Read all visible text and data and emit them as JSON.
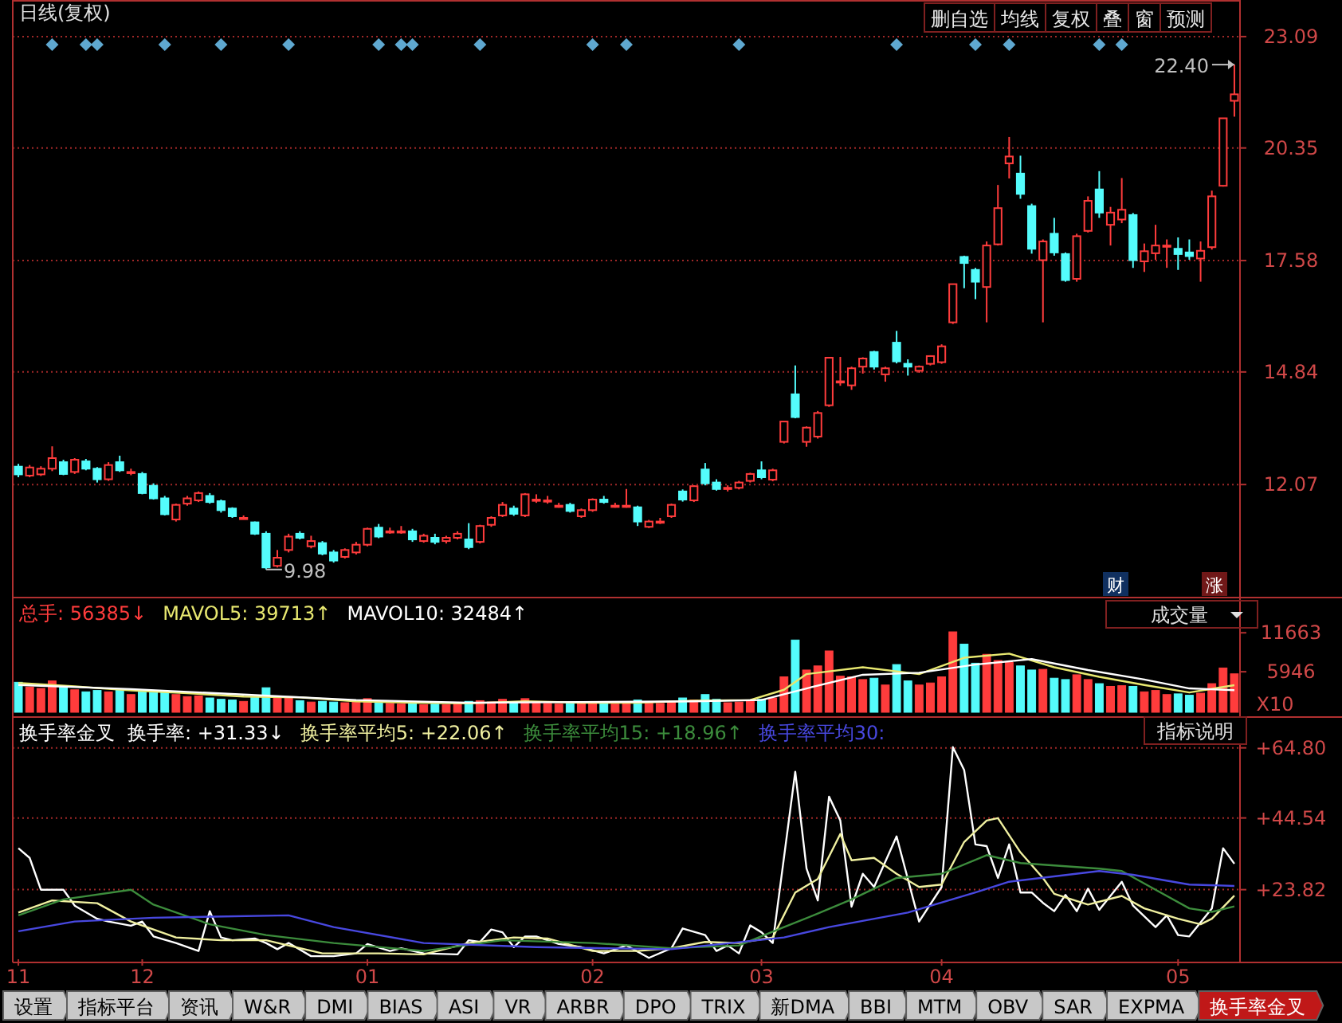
{
  "chart_data": [
    {
      "type": "candlestick",
      "title": "日线(复权)",
      "tick_labels": "y",
      "grid": "y",
      "ylim": [
        9.29,
        23.99
      ],
      "yticks": [
        12.07,
        14.84,
        17.58,
        20.35,
        23.09
      ],
      "categories": [
        null,
        null,
        null,
        null,
        null,
        null,
        null,
        null,
        null,
        null,
        null,
        null,
        null,
        null,
        null,
        null,
        null,
        null,
        null,
        null,
        null,
        null,
        null,
        null,
        null,
        null,
        null,
        null,
        null,
        null,
        null,
        null,
        null,
        null,
        null,
        null,
        null,
        null,
        null,
        null,
        null,
        null,
        null,
        null,
        null,
        null,
        null,
        null,
        null,
        null,
        null,
        null,
        null,
        null,
        null,
        null,
        null,
        null,
        null,
        null,
        null,
        null,
        null,
        null,
        null,
        null,
        null,
        null,
        null,
        null,
        null,
        null,
        null,
        null,
        null,
        null,
        null,
        null,
        null,
        null,
        null,
        null,
        null,
        null,
        null,
        null,
        null,
        null,
        null,
        null,
        null,
        null,
        null,
        null,
        null,
        null,
        null,
        null,
        null,
        null,
        null,
        null,
        null,
        null,
        null,
        null,
        null,
        null,
        null
      ],
      "ohlc": [
        [
          12.51,
          12.58,
          12.25,
          12.32
        ],
        [
          12.29,
          12.55,
          12.25,
          12.49
        ],
        [
          12.32,
          12.52,
          12.28,
          12.46
        ],
        [
          12.46,
          13.01,
          12.4,
          12.72
        ],
        [
          12.62,
          12.68,
          12.3,
          12.33
        ],
        [
          12.38,
          12.72,
          12.33,
          12.68
        ],
        [
          12.64,
          12.7,
          12.42,
          12.46
        ],
        [
          12.46,
          12.5,
          12.12,
          12.2
        ],
        [
          12.2,
          12.62,
          12.16,
          12.55
        ],
        [
          12.62,
          12.78,
          12.38,
          12.42
        ],
        [
          12.38,
          12.46,
          12.3,
          12.38
        ],
        [
          12.33,
          12.38,
          11.83,
          11.86
        ],
        [
          12.04,
          12.1,
          11.7,
          11.73
        ],
        [
          11.73,
          11.79,
          11.31,
          11.34
        ],
        [
          11.21,
          11.6,
          11.16,
          11.57
        ],
        [
          11.6,
          11.79,
          11.55,
          11.73
        ],
        [
          11.68,
          11.9,
          11.64,
          11.86
        ],
        [
          11.79,
          11.86,
          11.6,
          11.64
        ],
        [
          11.66,
          11.7,
          11.38,
          11.44
        ],
        [
          11.48,
          11.51,
          11.25,
          11.29
        ],
        [
          11.25,
          11.31,
          11.21,
          11.25
        ],
        [
          11.14,
          11.16,
          10.83,
          10.86
        ],
        [
          10.86,
          10.92,
          9.98,
          10.03
        ],
        [
          10.07,
          10.46,
          10.03,
          10.27
        ],
        [
          10.46,
          10.86,
          10.4,
          10.79
        ],
        [
          10.86,
          10.92,
          10.72,
          10.76
        ],
        [
          10.55,
          10.81,
          10.5,
          10.68
        ],
        [
          10.63,
          10.68,
          10.33,
          10.37
        ],
        [
          10.4,
          10.46,
          10.15,
          10.2
        ],
        [
          10.29,
          10.5,
          10.25,
          10.46
        ],
        [
          10.4,
          10.66,
          10.35,
          10.59
        ],
        [
          10.59,
          11.01,
          10.55,
          10.98
        ],
        [
          11.01,
          11.1,
          10.75,
          10.79
        ],
        [
          10.92,
          11.01,
          10.86,
          10.92
        ],
        [
          10.92,
          11.05,
          10.86,
          10.92
        ],
        [
          10.92,
          10.98,
          10.66,
          10.72
        ],
        [
          10.68,
          10.86,
          10.64,
          10.81
        ],
        [
          10.76,
          10.86,
          10.6,
          10.66
        ],
        [
          10.68,
          10.81,
          10.62,
          10.76
        ],
        [
          10.76,
          10.92,
          10.72,
          10.86
        ],
        [
          10.72,
          11.12,
          10.48,
          10.53
        ],
        [
          10.66,
          11.08,
          10.62,
          11.05
        ],
        [
          11.08,
          11.29,
          11.03,
          11.25
        ],
        [
          11.31,
          11.64,
          11.27,
          11.57
        ],
        [
          11.48,
          11.55,
          11.3,
          11.35
        ],
        [
          11.31,
          11.86,
          11.27,
          11.83
        ],
        [
          11.7,
          11.83,
          11.62,
          11.7
        ],
        [
          11.68,
          11.79,
          11.6,
          11.68
        ],
        [
          11.55,
          11.62,
          11.5,
          11.55
        ],
        [
          11.57,
          11.62,
          11.38,
          11.42
        ],
        [
          11.29,
          11.48,
          11.25,
          11.44
        ],
        [
          11.44,
          11.73,
          11.4,
          11.7
        ],
        [
          11.7,
          11.79,
          11.6,
          11.64
        ],
        [
          11.55,
          11.62,
          11.5,
          11.55
        ],
        [
          11.55,
          11.96,
          11.5,
          11.55
        ],
        [
          11.51,
          11.55,
          11.05,
          11.16
        ],
        [
          11.03,
          11.2,
          11.0,
          11.16
        ],
        [
          11.16,
          11.25,
          11.1,
          11.16
        ],
        [
          11.29,
          11.6,
          11.25,
          11.57
        ],
        [
          11.9,
          11.95,
          11.65,
          11.7
        ],
        [
          11.68,
          12.05,
          11.64,
          12.03
        ],
        [
          12.44,
          12.6,
          12.05,
          12.1
        ],
        [
          12.12,
          12.2,
          11.92,
          11.96
        ],
        [
          11.99,
          12.05,
          11.9,
          11.99
        ],
        [
          11.99,
          12.16,
          11.95,
          12.12
        ],
        [
          12.16,
          12.36,
          12.12,
          12.33
        ],
        [
          12.42,
          12.64,
          12.2,
          12.25
        ],
        [
          12.19,
          12.46,
          12.15,
          12.42
        ],
        [
          13.12,
          13.62,
          13.08,
          13.62
        ],
        [
          14.29,
          15.0,
          13.7,
          13.73
        ],
        [
          13.12,
          13.5,
          13.0,
          13.47
        ],
        [
          13.25,
          13.88,
          13.2,
          13.83
        ],
        [
          14.02,
          15.19,
          13.98,
          15.19
        ],
        [
          14.61,
          15.21,
          14.5,
          14.61
        ],
        [
          14.51,
          14.97,
          14.4,
          14.93
        ],
        [
          14.97,
          15.2,
          14.8,
          15.17
        ],
        [
          15.33,
          15.36,
          14.9,
          14.97
        ],
        [
          14.78,
          14.97,
          14.6,
          14.93
        ],
        [
          15.56,
          15.85,
          15.05,
          15.1
        ],
        [
          15.04,
          15.15,
          14.75,
          14.97
        ],
        [
          14.87,
          15.0,
          14.82,
          14.97
        ],
        [
          15.04,
          15.25,
          15.0,
          15.23
        ],
        [
          15.08,
          15.52,
          15.04,
          15.47
        ],
        [
          16.06,
          17.0,
          16.02,
          17.0
        ],
        [
          17.67,
          17.7,
          16.9,
          17.52
        ],
        [
          17.35,
          17.4,
          16.63,
          17.06
        ],
        [
          16.93,
          18.05,
          16.06,
          17.95
        ],
        [
          17.98,
          19.44,
          17.95,
          18.87
        ],
        [
          19.97,
          20.62,
          19.6,
          20.14
        ],
        [
          19.72,
          20.16,
          19.1,
          19.22
        ],
        [
          18.92,
          18.98,
          17.75,
          17.87
        ],
        [
          17.59,
          18.1,
          16.06,
          18.05
        ],
        [
          18.24,
          18.63,
          17.7,
          17.78
        ],
        [
          17.74,
          17.78,
          17.06,
          17.1
        ],
        [
          17.13,
          18.24,
          17.06,
          18.18
        ],
        [
          18.31,
          19.16,
          18.27,
          19.05
        ],
        [
          19.33,
          19.78,
          18.63,
          18.76
        ],
        [
          18.46,
          18.9,
          17.95,
          18.76
        ],
        [
          18.59,
          19.61,
          18.5,
          18.83
        ],
        [
          18.7,
          18.75,
          17.4,
          17.59
        ],
        [
          17.56,
          18.0,
          17.3,
          17.81
        ],
        [
          17.76,
          18.46,
          17.6,
          17.95
        ],
        [
          17.95,
          18.1,
          17.4,
          17.95
        ],
        [
          17.87,
          18.15,
          17.35,
          17.74
        ],
        [
          17.78,
          18.1,
          17.6,
          17.69
        ],
        [
          17.63,
          18.05,
          17.06,
          17.82
        ],
        [
          17.91,
          19.3,
          17.85,
          19.16
        ],
        [
          19.42,
          21.08,
          19.4,
          21.08
        ],
        [
          21.51,
          22.4,
          21.12,
          21.67
        ]
      ],
      "series": [
        {
          "type": "scatter",
          "marker": "diamond",
          "color": "#5fa8d0",
          "values": [
            null,
            null,
            null,
            22.89,
            null,
            null,
            22.89,
            22.89,
            null,
            null,
            null,
            null,
            null,
            22.89,
            null,
            null,
            null,
            null,
            22.89,
            null,
            null,
            null,
            null,
            null,
            22.89,
            null,
            null,
            null,
            null,
            null,
            null,
            null,
            22.89,
            null,
            22.89,
            22.89,
            null,
            null,
            null,
            null,
            null,
            22.89,
            null,
            null,
            null,
            null,
            null,
            null,
            null,
            null,
            null,
            22.89,
            null,
            null,
            22.89,
            null,
            null,
            null,
            null,
            null,
            null,
            null,
            null,
            null,
            22.89,
            null,
            null,
            null,
            null,
            null,
            null,
            null,
            null,
            null,
            null,
            null,
            null,
            null,
            22.89,
            null,
            null,
            null,
            null,
            null,
            null,
            22.89,
            null,
            null,
            22.89,
            null,
            null,
            null,
            null,
            null,
            null,
            null,
            22.89,
            null,
            22.89,
            null,
            null,
            null,
            null,
            null,
            null,
            null,
            null,
            null,
            null
          ]
        }
      ],
      "annotations": [
        "9.98",
        "22.40",
        "删自选",
        "均线",
        "复权",
        "叠",
        "窗",
        "预测",
        "财",
        "涨"
      ]
    },
    {
      "type": "bar",
      "tick_labels": "y",
      "legend": "top left",
      "ylim": [
        0,
        16830
      ],
      "yticks": [
        5946,
        11663
      ],
      "categories": [
        null,
        null,
        null,
        null,
        null,
        null,
        null,
        null,
        null,
        null,
        null,
        null,
        null,
        null,
        null,
        null,
        null,
        null,
        null,
        null,
        null,
        null,
        null,
        null,
        null,
        null,
        null,
        null,
        null,
        null,
        null,
        null,
        null,
        null,
        null,
        null,
        null,
        null,
        null,
        null,
        null,
        null,
        null,
        null,
        null,
        null,
        null,
        null,
        null,
        null,
        null,
        null,
        null,
        null,
        null,
        null,
        null,
        null,
        null,
        null,
        null,
        null,
        null,
        null,
        null,
        null,
        null,
        null,
        null,
        null,
        null,
        null,
        null,
        null,
        null,
        null,
        null,
        null,
        null,
        null,
        null,
        null,
        null,
        null,
        null,
        null,
        null,
        null,
        null,
        null,
        null,
        null,
        null,
        null,
        null,
        null,
        null,
        null,
        null,
        null,
        null,
        null,
        null,
        null,
        null,
        null,
        null,
        null,
        null
      ],
      "series": [
        {
          "name": "总手: 56385↓",
          "color": "#ff3c3c",
          "values": [
            4400,
            3700,
            3500,
            4600,
            3800,
            3300,
            3000,
            3200,
            3000,
            3400,
            2600,
            3300,
            2900,
            3100,
            2600,
            2300,
            2400,
            2100,
            1900,
            1800,
            1600,
            2200,
            3600,
            2400,
            2100,
            1700,
            1500,
            1600,
            1500,
            1400,
            1500,
            2000,
            1600,
            1300,
            1200,
            1300,
            1100,
            1200,
            1100,
            1200,
            1600,
            1700,
            1500,
            1900,
            1500,
            2000,
            1400,
            1300,
            1200,
            1300,
            1400,
            1500,
            1300,
            1200,
            1400,
            1800,
            1500,
            1300,
            1600,
            2100,
            1800,
            2600,
            1900,
            1400,
            1500,
            1700,
            1900,
            2100,
            5200,
            10600,
            6200,
            6800,
            9000,
            5300,
            5200,
            4800,
            5000,
            4000,
            7000,
            4600,
            4000,
            4300,
            5200,
            11800,
            10000,
            7200,
            8500,
            7600,
            7300,
            6800,
            6200,
            6300,
            5000,
            4800,
            5500,
            4800,
            4200,
            3800,
            3900,
            3800,
            3000,
            3200,
            2600,
            2700,
            2500,
            2800,
            4200,
            6500,
            5640
          ],
          "colors": [
            "#54fcfc",
            "#ff3c3c",
            "#ff3c3c",
            "#ff3c3c",
            "#54fcfc",
            "#ff3c3c",
            "#54fcfc",
            "#54fcfc",
            "#ff3c3c",
            "#54fcfc",
            "#ff3c3c",
            "#54fcfc",
            "#54fcfc",
            "#54fcfc",
            "#ff3c3c",
            "#ff3c3c",
            "#ff3c3c",
            "#54fcfc",
            "#54fcfc",
            "#54fcfc",
            "#ff3c3c",
            "#54fcfc",
            "#54fcfc",
            "#ff3c3c",
            "#ff3c3c",
            "#54fcfc",
            "#ff3c3c",
            "#54fcfc",
            "#54fcfc",
            "#ff3c3c",
            "#ff3c3c",
            "#ff3c3c",
            "#54fcfc",
            "#ff3c3c",
            "#ff3c3c",
            "#54fcfc",
            "#ff3c3c",
            "#54fcfc",
            "#ff3c3c",
            "#ff3c3c",
            "#54fcfc",
            "#ff3c3c",
            "#ff3c3c",
            "#ff3c3c",
            "#54fcfc",
            "#ff3c3c",
            "#ff3c3c",
            "#ff3c3c",
            "#ff3c3c",
            "#54fcfc",
            "#ff3c3c",
            "#ff3c3c",
            "#54fcfc",
            "#ff3c3c",
            "#ff3c3c",
            "#54fcfc",
            "#ff3c3c",
            "#ff3c3c",
            "#ff3c3c",
            "#54fcfc",
            "#ff3c3c",
            "#54fcfc",
            "#54fcfc",
            "#ff3c3c",
            "#ff3c3c",
            "#ff3c3c",
            "#54fcfc",
            "#ff3c3c",
            "#ff3c3c",
            "#54fcfc",
            "#ff3c3c",
            "#ff3c3c",
            "#ff3c3c",
            "#ff3c3c",
            "#ff3c3c",
            "#ff3c3c",
            "#54fcfc",
            "#ff3c3c",
            "#54fcfc",
            "#54fcfc",
            "#ff3c3c",
            "#ff3c3c",
            "#ff3c3c",
            "#ff3c3c",
            "#54fcfc",
            "#54fcfc",
            "#ff3c3c",
            "#ff3c3c",
            "#ff3c3c",
            "#54fcfc",
            "#54fcfc",
            "#ff3c3c",
            "#54fcfc",
            "#54fcfc",
            "#ff3c3c",
            "#ff3c3c",
            "#54fcfc",
            "#ff3c3c",
            "#ff3c3c",
            "#54fcfc",
            "#ff3c3c",
            "#ff3c3c",
            "#ff3c3c",
            "#54fcfc",
            "#54fcfc",
            "#ff3c3c",
            "#ff3c3c",
            "#ff3c3c",
            "#ff3c3c"
          ]
        },
        {
          "type": "line",
          "name": "MAVOL5: 39713↑",
          "color": "#e8e870",
          "values": [
            4300,
            null,
            null,
            null,
            null,
            3800,
            null,
            null,
            null,
            null,
            3200,
            null,
            null,
            null,
            null,
            2800,
            null,
            null,
            null,
            null,
            2300,
            null,
            null,
            null,
            null,
            2200,
            null,
            null,
            null,
            null,
            1600,
            null,
            null,
            null,
            null,
            1400,
            null,
            null,
            null,
            null,
            1300,
            null,
            null,
            null,
            null,
            1600,
            null,
            null,
            null,
            null,
            1400,
            null,
            null,
            null,
            null,
            1400,
            null,
            null,
            null,
            null,
            1700,
            null,
            null,
            null,
            null,
            1800,
            null,
            null,
            3300,
            null,
            5600,
            null,
            null,
            null,
            null,
            6600,
            null,
            null,
            null,
            null,
            5600,
            null,
            null,
            null,
            8000,
            null,
            null,
            null,
            8600,
            null,
            null,
            null,
            6600,
            null,
            null,
            null,
            5200,
            null,
            null,
            null,
            4000,
            null,
            null,
            null,
            2900,
            null,
            null,
            null,
            3970
          ]
        },
        {
          "type": "line",
          "name": "MAVOL10: 32484↑",
          "color": "#ffffff",
          "values": [
            4000,
            null,
            null,
            null,
            null,
            null,
            null,
            null,
            null,
            null,
            3400,
            null,
            null,
            null,
            null,
            null,
            null,
            null,
            null,
            null,
            2600,
            null,
            null,
            null,
            null,
            null,
            null,
            null,
            null,
            null,
            1800,
            null,
            null,
            null,
            null,
            null,
            null,
            null,
            null,
            null,
            1400,
            null,
            null,
            null,
            null,
            null,
            null,
            null,
            null,
            null,
            1500,
            null,
            null,
            null,
            null,
            null,
            null,
            null,
            null,
            null,
            1600,
            null,
            null,
            null,
            null,
            null,
            1800,
            null,
            null,
            null,
            3500,
            null,
            null,
            null,
            null,
            5500,
            null,
            null,
            null,
            null,
            5800,
            null,
            null,
            null,
            null,
            7000,
            null,
            null,
            null,
            null,
            7800,
            null,
            null,
            null,
            null,
            6200,
            null,
            null,
            null,
            null,
            4800,
            null,
            null,
            null,
            3500,
            null,
            null,
            null,
            3250
          ]
        }
      ],
      "annotations": [
        "成交量",
        "X10"
      ]
    },
    {
      "type": "line",
      "title": "换手率金叉",
      "legend": "top left",
      "grid": "y",
      "ylim": [
        3.7,
        73.7
      ],
      "yticks": [
        {
          "value": 23.82,
          "label": "+23.82"
        },
        {
          "value": 44.54,
          "label": "+44.54"
        },
        {
          "value": 64.8,
          "label": "+64.80"
        }
      ],
      "categories": [
        "11",
        null,
        null,
        null,
        null,
        null,
        null,
        null,
        null,
        null,
        null,
        "12",
        null,
        null,
        null,
        null,
        null,
        null,
        null,
        null,
        null,
        null,
        null,
        null,
        null,
        null,
        null,
        null,
        null,
        null,
        null,
        "01",
        null,
        null,
        null,
        null,
        null,
        null,
        null,
        null,
        null,
        null,
        null,
        null,
        null,
        null,
        null,
        null,
        null,
        null,
        null,
        "02",
        null,
        null,
        null,
        null,
        null,
        null,
        null,
        null,
        null,
        null,
        null,
        null,
        null,
        null,
        "03",
        null,
        null,
        null,
        null,
        null,
        null,
        null,
        null,
        null,
        null,
        null,
        null,
        null,
        null,
        null,
        "04",
        null,
        null,
        null,
        null,
        null,
        null,
        null,
        null,
        null,
        null,
        null,
        null,
        null,
        null,
        null,
        null,
        null,
        null,
        null,
        null,
        "05",
        null,
        null,
        null,
        null,
        null
      ],
      "series": [
        {
          "name": "换手率: +31.33↓",
          "color": "#ffffff",
          "values": [
            35.8,
            33.0,
            23.8,
            23.8,
            23.8,
            19.2,
            null,
            15.4,
            14.6,
            null,
            13.4,
            14.6,
            10.3,
            null,
            8.4,
            null,
            6.1,
            17.6,
            10.0,
            9.2,
            null,
            9.7,
            8.4,
            6.6,
            8.4,
            null,
            4.6,
            null,
            4.6,
            null,
            5.4,
            8.1,
            null,
            6.1,
            6.9,
            null,
            5.4,
            null,
            null,
            5.1,
            9.2,
            8.7,
            12.3,
            11.5,
            7.2,
            10.3,
            10.3,
            null,
            8.1,
            null,
            7.2,
            null,
            5.4,
            null,
            7.7,
            null,
            4.1,
            null,
            6.9,
            12.6,
            null,
            10.7,
            6.1,
            7.7,
            5.4,
            13.5,
            11.5,
            8.4,
            null,
            57.9,
            29.9,
            20.7,
            50.7,
            43.8,
            18.9,
            28.4,
            24.6,
            null,
            39.2,
            26.9,
            14.6,
            null,
            24.6,
            65.0,
            58.4,
            36.9,
            36.4,
            27.2,
            36.9,
            23.0,
            23.0,
            20.0,
            17.6,
            22.3,
            17.6,
            24.1,
            18.0,
            null,
            26.1,
            19.2,
            null,
            13.0,
            16.4,
            10.7,
            10.3,
            null,
            18.4,
            35.8,
            31.3
          ]
        },
        {
          "name": "换手率平均5: +22.06↑",
          "color": "#f0f0a0",
          "values": [
            17.2,
            null,
            null,
            20.7,
            null,
            null,
            null,
            19.9,
            null,
            null,
            14.6,
            null,
            null,
            null,
            10.0,
            null,
            null,
            null,
            9.2,
            null,
            null,
            null,
            9.2,
            null,
            null,
            null,
            null,
            5.4,
            null,
            null,
            null,
            null,
            5.4,
            null,
            null,
            null,
            5.1,
            null,
            null,
            null,
            8.4,
            null,
            null,
            null,
            10.0,
            null,
            null,
            9.7,
            null,
            null,
            null,
            6.1,
            null,
            null,
            null,
            6.1,
            null,
            null,
            6.9,
            null,
            null,
            8.7,
            null,
            null,
            8.4,
            null,
            null,
            10.0,
            null,
            23.0,
            null,
            26.9,
            null,
            39.9,
            32.3,
            null,
            33.0,
            null,
            28.4,
            null,
            24.6,
            null,
            25.3,
            null,
            37.6,
            null,
            43.8,
            44.5,
            null,
            34.6,
            null,
            27.2,
            22.6,
            null,
            null,
            19.5,
            null,
            null,
            22.0,
            null,
            18.4,
            null,
            null,
            15.4,
            null,
            13.8,
            15.4,
            null,
            22.1
          ]
        },
        {
          "name": "换手率平均15: +18.96↑",
          "color": "#3c8c3c",
          "values": [
            16.4,
            null,
            null,
            null,
            21.0,
            null,
            null,
            null,
            null,
            null,
            23.8,
            null,
            19.5,
            null,
            null,
            null,
            null,
            13.8,
            null,
            null,
            null,
            null,
            10.7,
            null,
            null,
            null,
            null,
            null,
            8.4,
            null,
            null,
            null,
            null,
            null,
            null,
            null,
            6.1,
            null,
            null,
            null,
            null,
            null,
            null,
            9.2,
            null,
            null,
            null,
            null,
            null,
            null,
            null,
            8.4,
            null,
            null,
            null,
            null,
            null,
            null,
            6.9,
            null,
            null,
            null,
            null,
            null,
            7.7,
            null,
            null,
            null,
            13.0,
            null,
            null,
            16.9,
            null,
            null,
            21.0,
            null,
            null,
            null,
            27.2,
            null,
            null,
            null,
            28.4,
            null,
            null,
            null,
            33.8,
            null,
            null,
            31.5,
            null,
            null,
            null,
            null,
            null,
            null,
            29.9,
            null,
            29.2,
            null,
            null,
            23.8,
            null,
            null,
            18.4,
            null,
            17.4,
            null,
            19.0
          ]
        },
        {
          "name": "换手率平均30:",
          "color": "#4848e0",
          "values": [
            11.8,
            null,
            null,
            null,
            null,
            14.6,
            null,
            null,
            null,
            null,
            null,
            null,
            15.7,
            null,
            null,
            null,
            null,
            null,
            null,
            null,
            null,
            null,
            null,
            null,
            16.4,
            null,
            null,
            null,
            13.0,
            null,
            null,
            null,
            null,
            null,
            null,
            null,
            8.4,
            null,
            null,
            null,
            null,
            null,
            null,
            null,
            null,
            null,
            7.2,
            null,
            null,
            null,
            null,
            null,
            null,
            null,
            null,
            null,
            null,
            null,
            6.6,
            null,
            null,
            null,
            null,
            null,
            null,
            null,
            null,
            null,
            10.0,
            null,
            null,
            null,
            13.0,
            null,
            null,
            null,
            null,
            null,
            null,
            17.2,
            null,
            null,
            null,
            null,
            null,
            23.0,
            null,
            null,
            26.1,
            null,
            null,
            null,
            null,
            null,
            null,
            null,
            29.2,
            null,
            null,
            28.1,
            null,
            null,
            null,
            null,
            25.3,
            null,
            null,
            null,
            24.9
          ]
        }
      ],
      "annotations": [
        "指标说明"
      ]
    },
    {
      "type": "other",
      "annotations": [
        "设置",
        "指标平台",
        "资讯",
        "W&R",
        "DMI",
        "BIAS",
        "ASI",
        "VR",
        "ARBR",
        "DPO",
        "TRIX",
        "新DMA",
        "BBI",
        "MTM",
        "OBV",
        "SAR",
        "EXPMA",
        "换手率金叉"
      ]
    }
  ]
}
